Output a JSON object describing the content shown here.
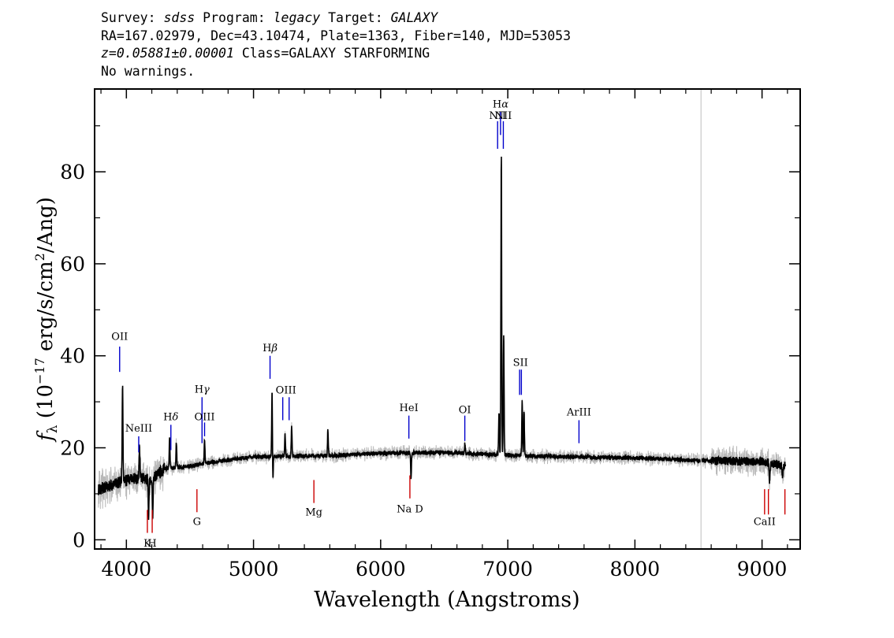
{
  "header": {
    "line1": [
      {
        "text": "Survey: ",
        "italic": false
      },
      {
        "text": "sdss",
        "italic": true
      },
      {
        "text": " Program: ",
        "italic": false
      },
      {
        "text": "legacy",
        "italic": true
      },
      {
        "text": " Target: ",
        "italic": false
      },
      {
        "text": "GALAXY",
        "italic": true
      }
    ],
    "line2": "RA=167.02979, Dec=43.10474, Plate=1363, Fiber=140, MJD=53053",
    "line3_italic": "z=0.05881±0.00001",
    "line3_rest": " Class=GALAXY STARFORMING",
    "line4": "No warnings."
  },
  "chart_data": {
    "type": "line",
    "xlabel": "Wavelength (Angstroms)",
    "ylabel_parts": {
      "f": "f",
      "sub": "λ",
      "open": " (10",
      "exp1": "−17",
      "mid": " erg/s/cm",
      "exp2": "2",
      "close": "/Ang)"
    },
    "xlim": [
      3750,
      9300
    ],
    "ylim": [
      -2,
      98
    ],
    "xticks": [
      4000,
      5000,
      6000,
      7000,
      8000,
      9000
    ],
    "xtick_labels": [
      "4000",
      "5000",
      "6000",
      "7000",
      "8000",
      "9000"
    ],
    "yticks": [
      0,
      20,
      40,
      60,
      80
    ],
    "ytick_labels": [
      "0",
      "20",
      "40",
      "60",
      "80"
    ],
    "vertical_marker_x": 8520,
    "continuum_knots": [
      [
        3780,
        11
      ],
      [
        3950,
        12.5
      ],
      [
        4100,
        13.5
      ],
      [
        4200,
        13
      ],
      [
        4300,
        15.5
      ],
      [
        4500,
        16
      ],
      [
        4700,
        17
      ],
      [
        5000,
        18
      ],
      [
        5300,
        18.2
      ],
      [
        5600,
        18.3
      ],
      [
        6000,
        18.8
      ],
      [
        6500,
        19
      ],
      [
        7000,
        18.4
      ],
      [
        7500,
        18
      ],
      [
        8000,
        17.8
      ],
      [
        8500,
        17.2
      ],
      [
        9000,
        17
      ],
      [
        9180,
        16
      ]
    ],
    "emission_lines": [
      {
        "x": 3970,
        "peak": 35,
        "width": 3
      },
      {
        "x": 4103,
        "peak": 21,
        "width": 3
      },
      {
        "x": 4340,
        "peak": 22,
        "width": 3
      },
      {
        "x": 4393,
        "peak": 21,
        "width": 3
      },
      {
        "x": 4615,
        "peak": 22,
        "width": 3
      },
      {
        "x": 5146,
        "peak": 33,
        "width": 3
      },
      {
        "x": 5248,
        "peak": 23,
        "width": 3
      },
      {
        "x": 5300,
        "peak": 24.5,
        "width": 3
      },
      {
        "x": 5585,
        "peak": 24,
        "width": 3
      },
      {
        "x": 6663,
        "peak": 21,
        "width": 3
      },
      {
        "x": 6931,
        "peak": 28,
        "width": 3
      },
      {
        "x": 6949,
        "peak": 84,
        "width": 3
      },
      {
        "x": 6968,
        "peak": 45,
        "width": 3
      },
      {
        "x": 7113,
        "peak": 30,
        "width": 3
      },
      {
        "x": 7128,
        "peak": 28,
        "width": 3
      }
    ],
    "absorption_lines": [
      {
        "x": 4175,
        "depth": 9,
        "width": 3
      },
      {
        "x": 4207,
        "depth": 8,
        "width": 3
      },
      {
        "x": 5152,
        "depth": 6,
        "width": 3
      },
      {
        "x": 6239,
        "depth": 6,
        "width": 3
      },
      {
        "x": 9060,
        "depth": 4,
        "width": 3
      },
      {
        "x": 9160,
        "depth": 3,
        "width": 3
      }
    ],
    "blue_markers": [
      {
        "label": "OII",
        "x": 3947,
        "y1": 36.5,
        "y2": 42,
        "label_y": 43.5,
        "symbol": false
      },
      {
        "label": "NeIII",
        "x": 4097,
        "y1": 19,
        "y2": 22.5,
        "label_y": 23.5,
        "symbol": false
      },
      {
        "label": "δ",
        "prefix": "H",
        "x": 4350,
        "y1": 19.5,
        "y2": 25,
        "label_y": 26,
        "symbol": true
      },
      {
        "label": "γ",
        "prefix": "H",
        "x": 4595,
        "y1": 21,
        "y2": 31,
        "label_y": 32,
        "symbol": true
      },
      {
        "label": "OIII",
        "x": 4615,
        "y1": 22.5,
        "y2": 25.5,
        "label_y": 26,
        "symbol": false
      },
      {
        "label": "β",
        "prefix": "H",
        "x": 5130,
        "y1": 35,
        "y2": 40,
        "label_y": 41,
        "symbol": true
      },
      {
        "label": "OIII",
        "x": 5230,
        "y1": 26,
        "y2": 31,
        "label_y": 31.8,
        "symbol": false,
        "pair_x": 5280
      },
      {
        "label": "HeI",
        "x": 6222,
        "y1": 22,
        "y2": 27,
        "label_y": 28,
        "symbol": false
      },
      {
        "label": "OI",
        "x": 6662,
        "y1": 21.5,
        "y2": 27,
        "label_y": 27.5,
        "symbol": false
      },
      {
        "label": "NII",
        "x": 6920,
        "y1": 85,
        "y2": 91,
        "label_y": 91.5,
        "symbol": false
      },
      {
        "label": "α",
        "prefix": "H",
        "x": 6943,
        "y1": 88,
        "y2": 93,
        "label_y": 94,
        "symbol": true
      },
      {
        "label": "NII",
        "x": 6965,
        "y1": 85,
        "y2": 91,
        "label_y": 91.5,
        "symbol": false
      },
      {
        "label": "SII",
        "x": 7093,
        "y1": 31.5,
        "y2": 37,
        "label_y": 37.8,
        "symbol": false,
        "pair_x": 7107
      },
      {
        "label": "ArIII",
        "x": 7560,
        "y1": 21,
        "y2": 26,
        "label_y": 27,
        "symbol": false
      }
    ],
    "red_markers": [
      {
        "label": "K",
        "x": 4165,
        "y1": 1.5,
        "y2": 6.5,
        "label_y": -1.5
      },
      {
        "label": "H",
        "x": 4203,
        "y1": 1.5,
        "y2": 6.5,
        "label_y": -1.5
      },
      {
        "label": "G",
        "x": 4555,
        "y1": 6,
        "y2": 11,
        "label_y": 3.2
      },
      {
        "label": "Mg",
        "x": 5475,
        "y1": 8,
        "y2": 13,
        "label_y": 5.3
      },
      {
        "label": "Na D",
        "x": 6230,
        "y1": 9,
        "y2": 14,
        "label_y": 6
      },
      {
        "label": "CaII",
        "x": 9020,
        "y1": 5.5,
        "y2": 11,
        "label_y": 3.2,
        "extra_x": [
          9050,
          9180
        ]
      }
    ],
    "colors": {
      "spectrum": "#000000",
      "error_band": "#b8b8b8",
      "emission_marker": "#0000cc",
      "absorption_marker": "#cc0000",
      "vertical_marker": "#c8c8c8"
    }
  }
}
